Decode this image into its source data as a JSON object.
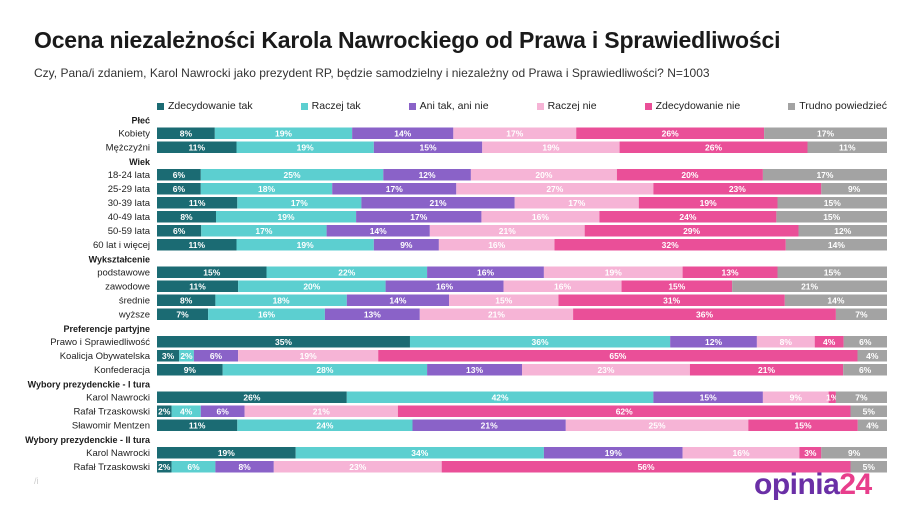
{
  "title": "Ocena niezależności Karola Nawrockiego od Prawa i Sprawiedliwości",
  "subtitle": "Czy, Pana/i zdaniem, Karol Nawrocki jako prezydent RP, będzie samodzielny i niezależny od Prawa i Sprawiedliwości? N=1003",
  "logo": {
    "part1": "opinia",
    "part2": "24"
  },
  "footmark": "/i",
  "chart_data": {
    "type": "bar",
    "orientation": "horizontal",
    "stacked": true,
    "xlim": [
      0,
      100
    ],
    "legend_position": "top",
    "series": [
      {
        "name": "Zdecydowanie tak",
        "color": "#1b6b73"
      },
      {
        "name": "Raczej tak",
        "color": "#5ccfd0"
      },
      {
        "name": "Ani tak, ani nie",
        "color": "#8a62c8"
      },
      {
        "name": "Raczej nie",
        "color": "#f6b4d6"
      },
      {
        "name": "Zdecydowanie nie",
        "color": "#ea4f98"
      },
      {
        "name": "Trudno powiedzieć",
        "color": "#a3a3a3"
      }
    ],
    "groups": [
      {
        "label": "Płeć",
        "rows": [
          {
            "label": "Kobiety",
            "values": [
              8,
              19,
              14,
              17,
              26,
              17
            ],
            "labels": [
              "8%",
              "19%",
              "14%",
              "17%",
              "26%",
              "17%"
            ]
          },
          {
            "label": "Mężczyźni",
            "values": [
              11,
              19,
              15,
              19,
              26,
              11
            ],
            "labels": [
              "11%",
              "19%",
              "15%",
              "19%",
              "26%",
              "11%"
            ]
          }
        ]
      },
      {
        "label": "Wiek",
        "rows": [
          {
            "label": "18-24 lata",
            "values": [
              6,
              25,
              12,
              20,
              20,
              17
            ],
            "labels": [
              "6%",
              "25%",
              "12%",
              "20%",
              "20%",
              "17%"
            ]
          },
          {
            "label": "25-29 lata",
            "values": [
              6,
              18,
              17,
              27,
              23,
              9
            ],
            "labels": [
              "6%",
              "18%",
              "17%",
              "27%",
              "23%",
              "9%"
            ]
          },
          {
            "label": "30-39 lata",
            "values": [
              11,
              17,
              21,
              17,
              19,
              15
            ],
            "labels": [
              "11%",
              "17%",
              "21%",
              "17%",
              "19%",
              "15%"
            ]
          },
          {
            "label": "40-49 lata",
            "values": [
              8,
              19,
              17,
              16,
              24,
              15
            ],
            "labels": [
              "8%",
              "19%",
              "17%",
              "16%",
              "24%",
              "15%"
            ]
          },
          {
            "label": "50-59 lata",
            "values": [
              6,
              17,
              14,
              21,
              29,
              12
            ],
            "labels": [
              "6%",
              "17%",
              "14%",
              "21%",
              "29%",
              "12%"
            ]
          },
          {
            "label": "60 lat i więcej",
            "values": [
              11,
              19,
              9,
              16,
              32,
              14
            ],
            "labels": [
              "11%",
              "19%",
              "9%",
              "16%",
              "32%",
              "14%"
            ]
          }
        ]
      },
      {
        "label": "Wykształcenie",
        "rows": [
          {
            "label": "podstawowe",
            "values": [
              15,
              22,
              16,
              19,
              13,
              15
            ],
            "labels": [
              "15%",
              "22%",
              "16%",
              "19%",
              "13%",
              "15%"
            ]
          },
          {
            "label": "zawodowe",
            "values": [
              11,
              20,
              16,
              16,
              15,
              21
            ],
            "labels": [
              "11%",
              "20%",
              "16%",
              "16%",
              "15%",
              "21%"
            ]
          },
          {
            "label": "średnie",
            "values": [
              8,
              18,
              14,
              15,
              31,
              14
            ],
            "labels": [
              "8%",
              "18%",
              "14%",
              "15%",
              "31%",
              "14%"
            ]
          },
          {
            "label": "wyższe",
            "values": [
              7,
              16,
              13,
              21,
              36,
              7
            ],
            "labels": [
              "7%",
              "16%",
              "13%",
              "21%",
              "36%",
              "7%"
            ]
          }
        ]
      },
      {
        "label": "Preferencje partyjne",
        "rows": [
          {
            "label": "Prawo i Sprawiedliwość",
            "values": [
              35,
              36,
              12,
              8,
              4,
              6
            ],
            "labels": [
              "35%",
              "36%",
              "12%",
              "8%",
              "4%",
              "6%"
            ]
          },
          {
            "label": "Koalicja Obywatelska",
            "values": [
              3,
              2,
              6,
              19,
              65,
              4
            ],
            "labels": [
              "3%",
              "2%",
              "6%",
              "19%",
              "65%",
              "4%"
            ]
          },
          {
            "label": "Konfederacja",
            "values": [
              9,
              28,
              13,
              23,
              21,
              6
            ],
            "labels": [
              "9%",
              "28%",
              "13%",
              "23%",
              "21%",
              "6%"
            ]
          }
        ]
      },
      {
        "label": "Wybory prezydenckie - I tura",
        "rows": [
          {
            "label": "Karol Nawrocki",
            "values": [
              26,
              42,
              15,
              9,
              1,
              7
            ],
            "labels": [
              "26%",
              "42%",
              "15%",
              "9%",
              "1%",
              "7%"
            ]
          },
          {
            "label": "Rafał Trzaskowski",
            "values": [
              2,
              4,
              6,
              21,
              62,
              5
            ],
            "labels": [
              "2%",
              "4%",
              "6%",
              "21%",
              "62%",
              "5%"
            ]
          },
          {
            "label": "Sławomir Mentzen",
            "values": [
              11,
              24,
              21,
              25,
              15,
              4
            ],
            "labels": [
              "11%",
              "24%",
              "21%",
              "25%",
              "15%",
              "4%"
            ]
          }
        ]
      },
      {
        "label": "Wybory prezydenckie - II tura",
        "rows": [
          {
            "label": "Karol Nawrocki",
            "values": [
              19,
              34,
              19,
              16,
              3,
              9
            ],
            "labels": [
              "19%",
              "34%",
              "19%",
              "16%",
              "3%",
              "9%"
            ]
          },
          {
            "label": "Rafał Trzaskowski",
            "values": [
              2,
              6,
              8,
              23,
              56,
              5
            ],
            "labels": [
              "2%",
              "6%",
              "8%",
              "23%",
              "56%",
              "5%"
            ]
          }
        ]
      }
    ]
  }
}
